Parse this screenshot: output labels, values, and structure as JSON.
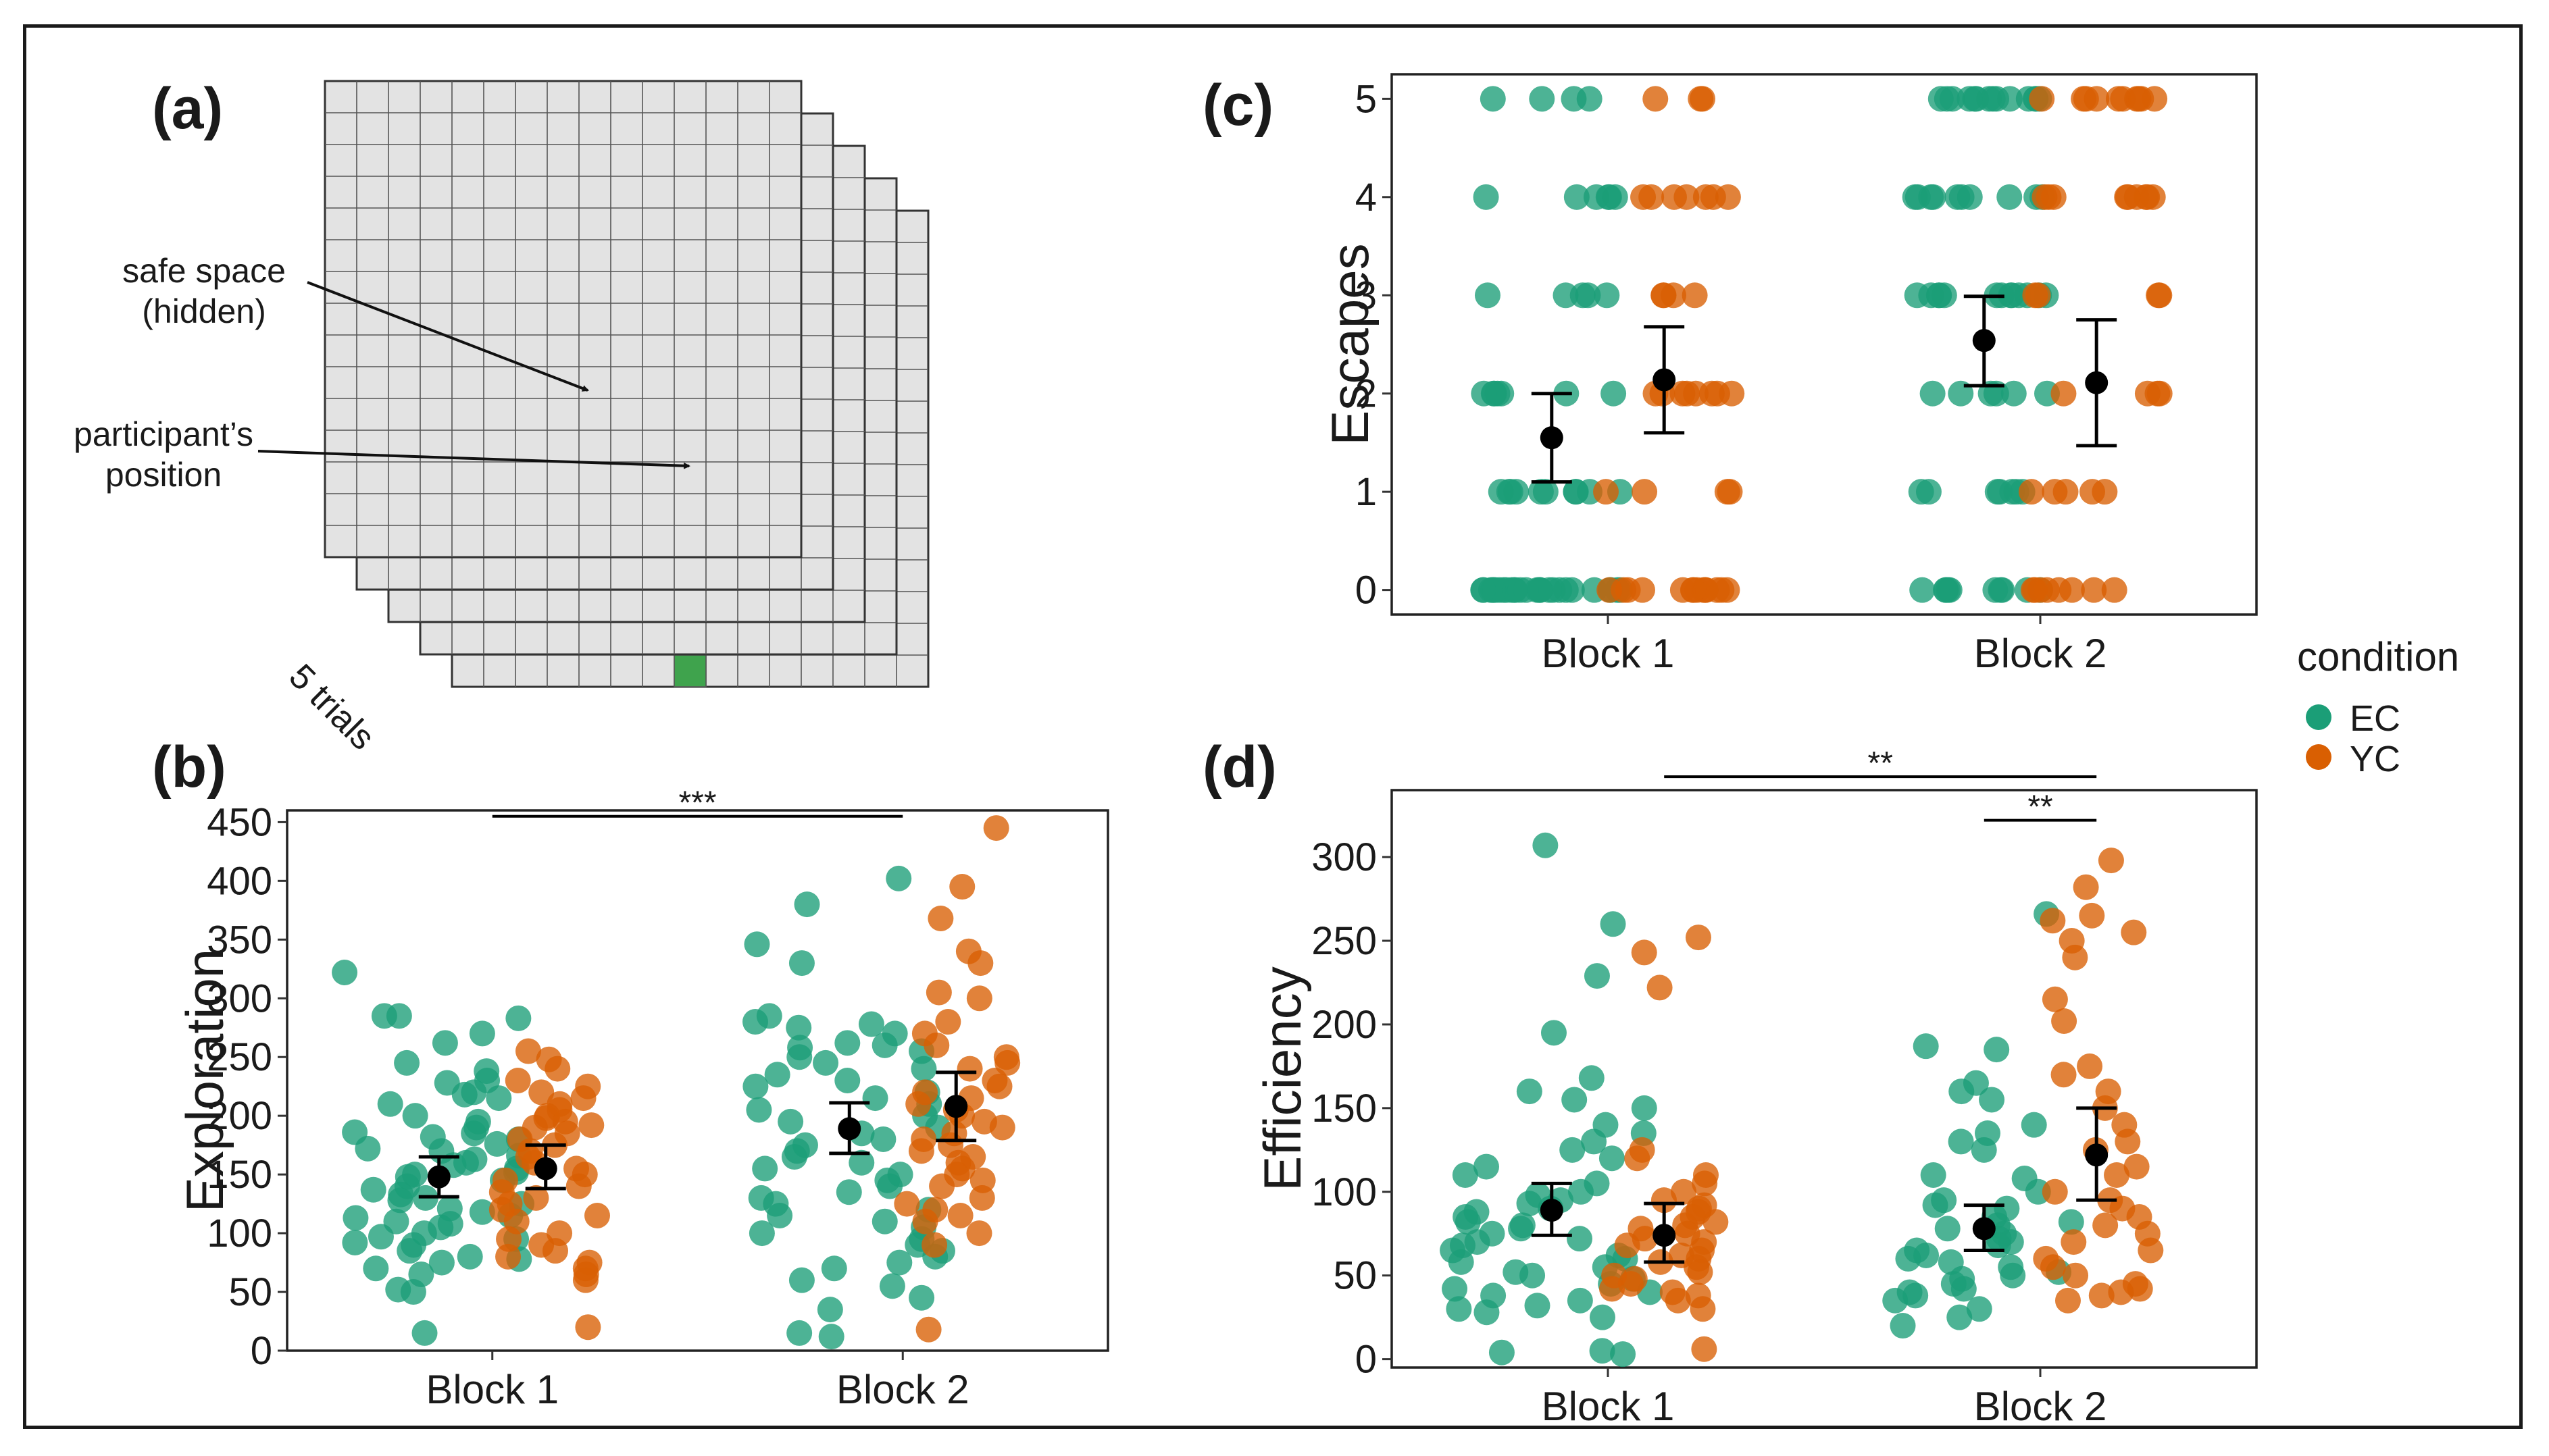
{
  "panel_a": {
    "label": "(a)",
    "annotation_safe_line1": "safe space",
    "annotation_safe_line2": "(hidden)",
    "annotation_pos_line1": "participant’s",
    "annotation_pos_line2": "position",
    "trials_label": "5 trials",
    "grid_cols": 15,
    "grid_rows": 15,
    "layers": 5,
    "colors": {
      "cell": "#e3e3e3",
      "line": "#555555",
      "safe": "#3fa34d",
      "participant": "#ffffff"
    }
  },
  "legend": {
    "title": "condition",
    "items": [
      {
        "label": "EC",
        "color": "#1b9e77"
      },
      {
        "label": "YC",
        "color": "#d95f02"
      }
    ]
  },
  "chart_data": [
    {
      "panel": "(b)",
      "type": "scatter",
      "ylabel": "Exploration",
      "xlabel": "",
      "categories": [
        "Block 1",
        "Block 2"
      ],
      "ylim": [
        0,
        460
      ],
      "yticks": [
        0,
        50,
        100,
        150,
        200,
        250,
        300,
        350,
        400,
        450
      ],
      "means": [
        {
          "block": "Block 1",
          "group": "EC",
          "mean": 148,
          "ci": [
            131,
            165
          ]
        },
        {
          "block": "Block 1",
          "group": "YC",
          "mean": 155,
          "ci": [
            138,
            175
          ]
        },
        {
          "block": "Block 2",
          "group": "EC",
          "mean": 189,
          "ci": [
            168,
            211
          ]
        },
        {
          "block": "Block 2",
          "group": "YC",
          "mean": 208,
          "ci": [
            179,
            237
          ]
        }
      ],
      "significance": [
        {
          "label": "***",
          "from": "Block 1",
          "to": "Block 2",
          "y": 455
        }
      ],
      "series": [
        {
          "name": "EC",
          "block": "Block 1",
          "values": [
            322,
            283,
            285,
            285,
            270,
            262,
            245,
            238,
            230,
            228,
            220,
            218,
            215,
            210,
            200,
            195,
            190,
            186,
            185,
            182,
            180,
            176,
            172,
            170,
            166,
            163,
            160,
            158,
            155,
            152,
            150,
            148,
            145,
            140,
            137,
            133,
            130,
            128,
            125,
            121,
            118,
            115,
            113,
            110,
            108,
            105,
            100,
            97,
            95,
            92,
            90,
            85,
            80,
            78,
            75,
            70,
            65,
            52,
            50,
            15
          ]
        },
        {
          "name": "YC",
          "block": "Block 1",
          "values": [
            255,
            248,
            240,
            230,
            225,
            220,
            215,
            210,
            205,
            200,
            198,
            195,
            192,
            190,
            185,
            180,
            175,
            170,
            165,
            160,
            155,
            150,
            145,
            140,
            135,
            130,
            125,
            120,
            115,
            110,
            100,
            95,
            90,
            85,
            80,
            75,
            70,
            65,
            60,
            20
          ]
        },
        {
          "name": "EC",
          "block": "Block 2",
          "values": [
            402,
            380,
            346,
            330,
            285,
            280,
            278,
            275,
            270,
            262,
            260,
            258,
            255,
            250,
            245,
            240,
            235,
            230,
            225,
            220,
            215,
            210,
            205,
            200,
            195,
            190,
            185,
            180,
            175,
            170,
            165,
            160,
            155,
            150,
            145,
            140,
            135,
            130,
            125,
            120,
            115,
            110,
            105,
            100,
            95,
            90,
            85,
            80,
            75,
            70,
            60,
            55,
            45,
            35,
            15,
            12
          ]
        },
        {
          "name": "YC",
          "block": "Block 2",
          "values": [
            445,
            395,
            368,
            340,
            330,
            305,
            300,
            280,
            270,
            260,
            250,
            245,
            240,
            230,
            225,
            220,
            215,
            210,
            205,
            200,
            195,
            190,
            185,
            180,
            175,
            170,
            165,
            160,
            155,
            150,
            145,
            140,
            130,
            125,
            120,
            115,
            110,
            100,
            90,
            18
          ]
        }
      ]
    },
    {
      "panel": "(c)",
      "type": "scatter",
      "ylabel": "Escapes",
      "xlabel": "",
      "categories": [
        "Block 1",
        "Block 2"
      ],
      "ylim": [
        -0.25,
        5.25
      ],
      "yticks": [
        0,
        1,
        2,
        3,
        4,
        5
      ],
      "means": [
        {
          "block": "Block 1",
          "group": "EC",
          "mean": 1.55,
          "ci": [
            1.1,
            2.0
          ]
        },
        {
          "block": "Block 1",
          "group": "YC",
          "mean": 2.14,
          "ci": [
            1.6,
            2.68
          ]
        },
        {
          "block": "Block 2",
          "group": "EC",
          "mean": 2.54,
          "ci": [
            2.08,
            2.99
          ]
        },
        {
          "block": "Block 2",
          "group": "YC",
          "mean": 2.11,
          "ci": [
            1.47,
            2.75
          ]
        }
      ],
      "series": [
        {
          "name": "EC",
          "block": "Block 1",
          "values": [
            5,
            5,
            5,
            5,
            4,
            4,
            4,
            4,
            4,
            4,
            3,
            3,
            3,
            3,
            3,
            2,
            2,
            2,
            2,
            2,
            2,
            2,
            1,
            1,
            1,
            1,
            1,
            1,
            1,
            1,
            1,
            1,
            0,
            0,
            0,
            0,
            0,
            0,
            0,
            0,
            0,
            0,
            0,
            0,
            0,
            0,
            0,
            0,
            0,
            0,
            0,
            0,
            0,
            0,
            0,
            0,
            0,
            0,
            0,
            0
          ]
        },
        {
          "name": "YC",
          "block": "Block 1",
          "values": [
            5,
            5,
            5,
            4,
            4,
            4,
            4,
            4,
            4,
            4,
            3,
            3,
            3,
            3,
            2,
            2,
            2,
            2,
            2,
            2,
            2,
            2,
            1,
            1,
            1,
            1,
            0,
            0,
            0,
            0,
            0,
            0,
            0,
            0,
            0,
            0,
            0,
            0,
            0,
            0
          ]
        },
        {
          "name": "EC",
          "block": "Block 2",
          "values": [
            5,
            5,
            5,
            5,
            5,
            5,
            5,
            5,
            5,
            5,
            5,
            5,
            5,
            5,
            4,
            4,
            4,
            4,
            4,
            4,
            4,
            4,
            4,
            4,
            3,
            3,
            3,
            3,
            3,
            3,
            3,
            3,
            3,
            3,
            3,
            3,
            3,
            2,
            2,
            2,
            2,
            2,
            2,
            1,
            1,
            1,
            1,
            1,
            1,
            1,
            0,
            0,
            0,
            0,
            0,
            0,
            0,
            0,
            0,
            0
          ]
        },
        {
          "name": "YC",
          "block": "Block 2",
          "values": [
            5,
            5,
            5,
            5,
            5,
            5,
            5,
            5,
            5,
            5,
            4,
            4,
            4,
            4,
            4,
            4,
            4,
            4,
            4,
            3,
            3,
            3,
            3,
            2,
            2,
            2,
            2,
            1,
            1,
            1,
            1,
            1,
            0,
            0,
            0,
            0,
            0,
            0,
            0,
            0
          ]
        }
      ]
    },
    {
      "panel": "(d)",
      "type": "scatter",
      "ylabel": "Efficiency",
      "xlabel": "",
      "categories": [
        "Block 1",
        "Block 2"
      ],
      "ylim": [
        -5,
        340
      ],
      "yticks": [
        0,
        50,
        100,
        150,
        200,
        250,
        300
      ],
      "means": [
        {
          "block": "Block 1",
          "group": "EC",
          "mean": 89,
          "ci": [
            74,
            105
          ]
        },
        {
          "block": "Block 1",
          "group": "YC",
          "mean": 74,
          "ci": [
            58,
            93
          ]
        },
        {
          "block": "Block 2",
          "group": "EC",
          "mean": 78,
          "ci": [
            65,
            92
          ]
        },
        {
          "block": "Block 2",
          "group": "YC",
          "mean": 122,
          "ci": [
            95,
            150
          ]
        }
      ],
      "significance": [
        {
          "label": "**",
          "from": "Block 1 YC",
          "to": "Block 2 YC",
          "y": 348
        },
        {
          "label": "**",
          "from": "Block 2 EC",
          "to": "Block 2 YC",
          "y": 322
        }
      ],
      "series": [
        {
          "name": "EC",
          "block": "Block 1",
          "values": [
            307,
            260,
            229,
            195,
            168,
            160,
            155,
            150,
            140,
            135,
            130,
            125,
            120,
            115,
            110,
            105,
            100,
            98,
            95,
            93,
            90,
            88,
            85,
            82,
            80,
            78,
            75,
            72,
            70,
            68,
            65,
            62,
            60,
            58,
            55,
            52,
            50,
            48,
            45,
            42,
            40,
            38,
            35,
            32,
            30,
            28,
            25,
            5,
            4,
            3
          ]
        },
        {
          "name": "YC",
          "block": "Block 1",
          "values": [
            252,
            243,
            222,
            125,
            120,
            110,
            105,
            100,
            95,
            92,
            90,
            88,
            85,
            82,
            80,
            78,
            75,
            72,
            70,
            68,
            65,
            62,
            60,
            58,
            55,
            52,
            50,
            48,
            45,
            42,
            40,
            38,
            35,
            30,
            6
          ]
        },
        {
          "name": "EC",
          "block": "Block 2",
          "values": [
            266,
            187,
            185,
            165,
            160,
            155,
            140,
            135,
            130,
            125,
            110,
            108,
            100,
            95,
            92,
            90,
            85,
            82,
            80,
            78,
            75,
            72,
            70,
            68,
            65,
            62,
            60,
            58,
            55,
            52,
            50,
            48,
            45,
            42,
            40,
            38,
            35,
            30,
            25,
            20
          ]
        },
        {
          "name": "YC",
          "block": "Block 2",
          "values": [
            298,
            282,
            265,
            262,
            255,
            250,
            240,
            215,
            202,
            175,
            170,
            160,
            150,
            140,
            130,
            125,
            115,
            110,
            100,
            95,
            90,
            85,
            80,
            75,
            70,
            65,
            60,
            55,
            50,
            45,
            42,
            40,
            38,
            35
          ]
        }
      ]
    }
  ]
}
